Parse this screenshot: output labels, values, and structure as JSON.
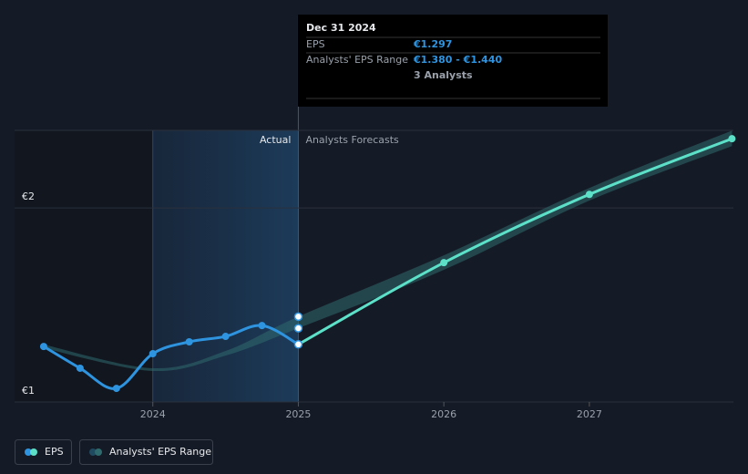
{
  "chart_data": {
    "type": "line",
    "xlim": [
      2023.05,
      2027.99
    ],
    "xticks": [
      2024,
      2025,
      2026,
      2027
    ],
    "ylim": [
      1,
      2.4
    ],
    "yticks": [
      {
        "value": 1,
        "label": "€1"
      },
      {
        "value": 2,
        "label": "€2"
      }
    ],
    "actual_label": "Actual",
    "forecast_label": "Analysts Forecasts",
    "series": [
      {
        "name": "EPS",
        "color": "#2f94e0",
        "x": [
          2023.25,
          2023.5,
          2023.75,
          2024.0,
          2024.25,
          2024.5,
          2024.75,
          2025.0
        ],
        "values": [
          1.286,
          1.174,
          1.07,
          1.249,
          1.31,
          1.338,
          1.394,
          1.297
        ],
        "forecast_color": "#5ce0c8",
        "forecast_x": [
          2025.0,
          2026.0,
          2027.0,
          2027.98
        ],
        "forecast_values": [
          1.297,
          1.718,
          2.07,
          2.357
        ]
      },
      {
        "name": "Analysts' EPS Range",
        "color": "#2f6a6e",
        "x": [
          2023.25,
          2024.0,
          2024.5,
          2025.0,
          2026.0,
          2027.0,
          2027.98
        ],
        "low": [
          1.277,
          1.16,
          1.239,
          1.38,
          1.681,
          2.038,
          2.319
        ],
        "high": [
          1.296,
          1.174,
          1.263,
          1.44,
          1.756,
          2.103,
          2.399
        ]
      }
    ],
    "tooltip": {
      "title": "Dec 31 2024",
      "rows": [
        {
          "label": "EPS",
          "value_label": "€1.297"
        },
        {
          "label": "Analysts' EPS Range",
          "value_label": "€1.380 - €1.440"
        }
      ],
      "note": "3 Analysts"
    }
  }
}
